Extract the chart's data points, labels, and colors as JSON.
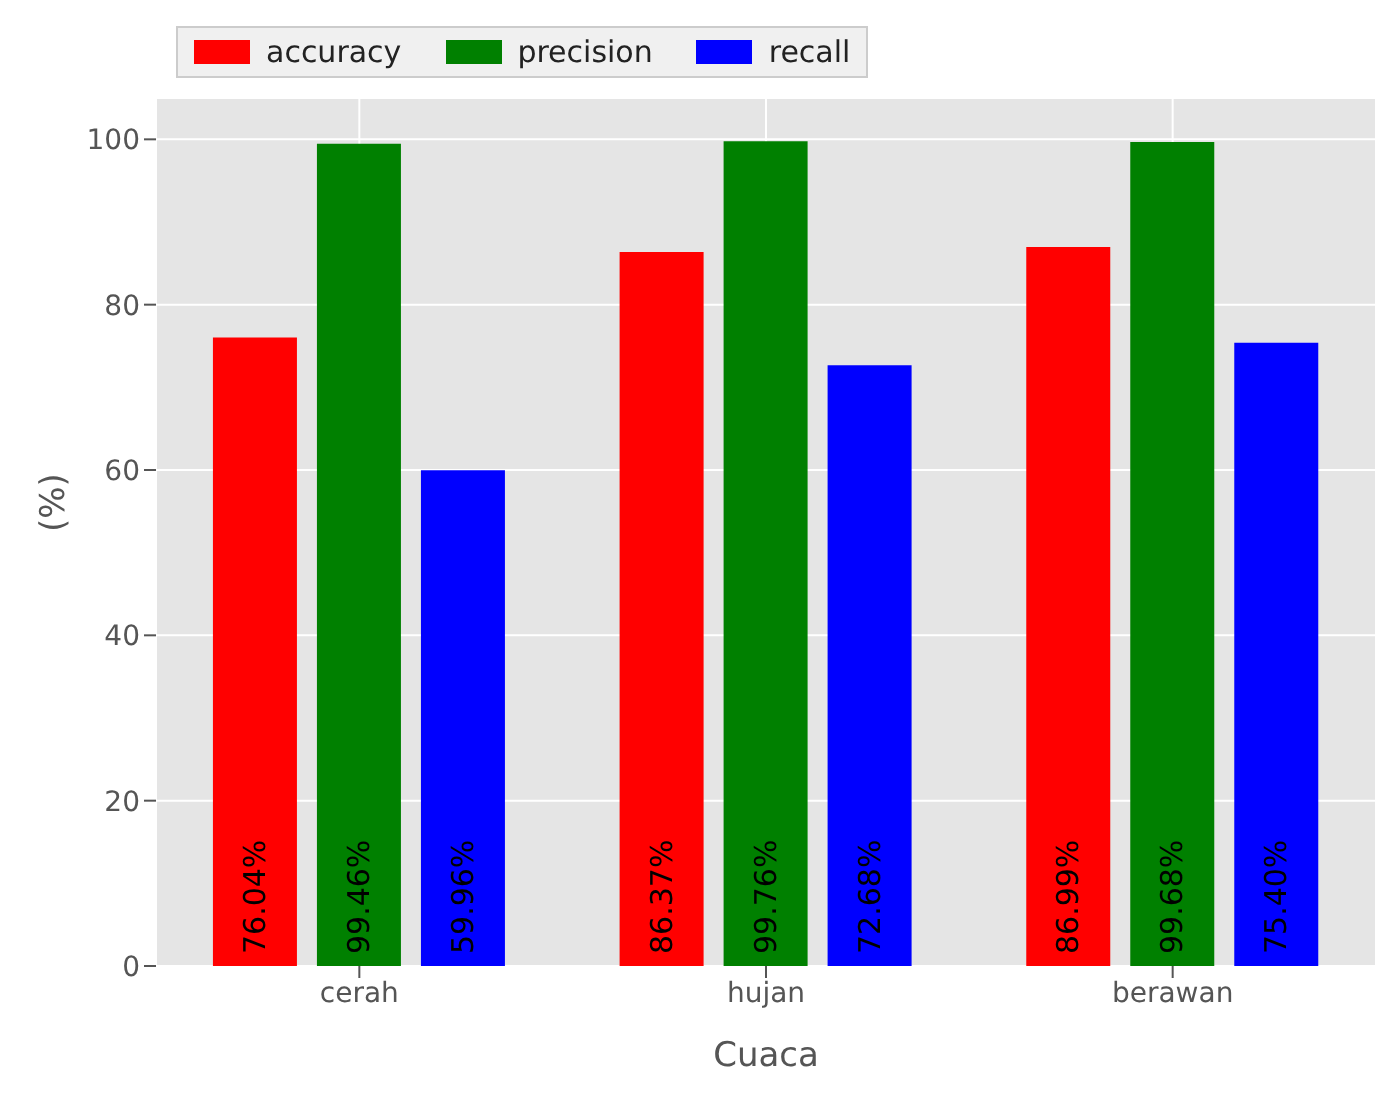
{
  "chart_data": {
    "type": "bar",
    "xlabel": "Cuaca",
    "ylabel": "(%)",
    "categories": [
      "cerah",
      "hujan",
      "berawan"
    ],
    "series": [
      {
        "name": "accuracy",
        "color": "#ff0000",
        "values": [
          76.04,
          86.37,
          86.99
        ],
        "value_labels": [
          "76.04%",
          "86.37%",
          "86.99%"
        ]
      },
      {
        "name": "precision",
        "color": "#008000",
        "values": [
          99.46,
          99.76,
          99.68
        ],
        "value_labels": [
          "99.46%",
          "99.76%",
          "99.68%"
        ]
      },
      {
        "name": "recall",
        "color": "#0000ff",
        "values": [
          59.96,
          72.68,
          75.4
        ],
        "value_labels": [
          "59.96%",
          "72.68%",
          "75.40%"
        ]
      }
    ],
    "ylim": [
      0,
      105
    ],
    "yticks": [
      0,
      20,
      40,
      60,
      80,
      100
    ],
    "grid": true,
    "legend": "top left"
  }
}
